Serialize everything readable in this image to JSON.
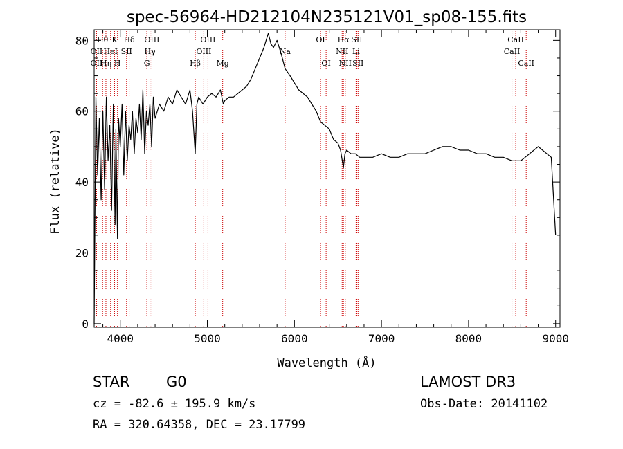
{
  "chart_data": {
    "type": "line",
    "title": "spec-56964-HD212104N235121V01_sp08-155.fits",
    "xlabel": "Wavelength (Å)",
    "ylabel": "Flux (relative)",
    "xlim": [
      3700,
      9050
    ],
    "ylim": [
      -1,
      83
    ],
    "x_ticks": [
      4000,
      5000,
      6000,
      7000,
      8000,
      9000
    ],
    "y_ticks": [
      0,
      20,
      40,
      60,
      80
    ],
    "grid": false,
    "series": [
      {
        "name": "flux",
        "x": [
          3700,
          3720,
          3740,
          3760,
          3780,
          3800,
          3820,
          3840,
          3860,
          3880,
          3900,
          3920,
          3940,
          3950,
          3968,
          3980,
          4000,
          4020,
          4040,
          4060,
          4080,
          4101,
          4120,
          4140,
          4160,
          4180,
          4200,
          4220,
          4240,
          4260,
          4280,
          4300,
          4320,
          4340,
          4360,
          4380,
          4400,
          4450,
          4500,
          4550,
          4600,
          4650,
          4700,
          4750,
          4800,
          4830,
          4861,
          4880,
          4900,
          4950,
          5000,
          5050,
          5100,
          5150,
          5183,
          5200,
          5250,
          5300,
          5350,
          5400,
          5450,
          5500,
          5550,
          5600,
          5650,
          5700,
          5730,
          5760,
          5800,
          5850,
          5893,
          5950,
          6000,
          6050,
          6100,
          6150,
          6200,
          6250,
          6300,
          6350,
          6400,
          6450,
          6500,
          6530,
          6550,
          6563,
          6580,
          6600,
          6650,
          6700,
          6750,
          6800,
          6900,
          7000,
          7100,
          7200,
          7300,
          7400,
          7500,
          7600,
          7700,
          7800,
          7900,
          8000,
          8100,
          8200,
          8300,
          8400,
          8500,
          8550,
          8600,
          8650,
          8700,
          8750,
          8800,
          8850,
          8900,
          8950,
          9000
        ],
        "values": [
          0,
          64,
          42,
          58,
          35,
          60,
          38,
          64,
          46,
          56,
          32,
          62,
          28,
          55,
          24,
          58,
          50,
          62,
          42,
          60,
          46,
          56,
          52,
          60,
          48,
          58,
          54,
          62,
          52,
          66,
          48,
          60,
          56,
          62,
          50,
          64,
          58,
          62,
          60,
          64,
          62,
          66,
          64,
          62,
          66,
          60,
          48,
          62,
          64,
          62,
          64,
          65,
          64,
          66,
          62,
          63,
          64,
          64,
          65,
          66,
          67,
          69,
          72,
          75,
          78,
          82,
          79,
          78,
          80,
          76,
          72,
          70,
          68,
          66,
          65,
          64,
          62,
          60,
          57,
          56,
          55,
          52,
          51,
          49,
          46,
          44,
          48,
          49,
          48,
          48,
          47,
          47,
          47,
          48,
          47,
          47,
          48,
          48,
          48,
          49,
          50,
          50,
          49,
          49,
          48,
          48,
          47,
          47,
          46,
          46,
          46,
          47,
          48,
          49,
          50,
          49,
          48,
          47,
          25
        ]
      }
    ],
    "lines": [
      {
        "label": "Hθ",
        "wavelength": 3797,
        "row": 0
      },
      {
        "label": "OII",
        "wavelength": 3727,
        "row": 1
      },
      {
        "label": "OII",
        "wavelength": 3727,
        "row": 2
      },
      {
        "label": "Hη",
        "wavelength": 3835,
        "row": 2
      },
      {
        "label": "K",
        "wavelength": 3934,
        "row": 0
      },
      {
        "label": "H",
        "wavelength": 3968,
        "row": 2
      },
      {
        "label": "HeI",
        "wavelength": 3889,
        "row": 1
      },
      {
        "label": "SII",
        "wavelength": 4072,
        "row": 1
      },
      {
        "label": "Hδ",
        "wavelength": 4102,
        "row": 0
      },
      {
        "label": "OIII",
        "wavelength": 4363,
        "row": 0
      },
      {
        "label": "Hγ",
        "wavelength": 4341,
        "row": 1
      },
      {
        "label": "G",
        "wavelength": 4305,
        "row": 2
      },
      {
        "label": "Hβ",
        "wavelength": 4861,
        "row": 2
      },
      {
        "label": "OIII",
        "wavelength": 5007,
        "row": 0
      },
      {
        "label": "OIII",
        "wavelength": 4959,
        "row": 1
      },
      {
        "label": "Mg",
        "wavelength": 5176,
        "row": 2
      },
      {
        "label": "Na",
        "wavelength": 5893,
        "row": 1
      },
      {
        "label": "OI",
        "wavelength": 6300,
        "row": 0
      },
      {
        "label": "OI",
        "wavelength": 6364,
        "row": 2
      },
      {
        "label": "Hα",
        "wavelength": 6563,
        "row": 0
      },
      {
        "label": "SII",
        "wavelength": 6717,
        "row": 0
      },
      {
        "label": "NII",
        "wavelength": 6548,
        "row": 1
      },
      {
        "label": "Li",
        "wavelength": 6708,
        "row": 1
      },
      {
        "label": "NII",
        "wavelength": 6584,
        "row": 2
      },
      {
        "label": "SII",
        "wavelength": 6731,
        "row": 2
      },
      {
        "label": "CaII",
        "wavelength": 8542,
        "row": 0
      },
      {
        "label": "CaII",
        "wavelength": 8498,
        "row": 1
      },
      {
        "label": "CaII",
        "wavelength": 8662,
        "row": 2
      }
    ],
    "line_color": "#cc0000"
  },
  "info": {
    "object_class": "STAR",
    "subclass": "G0",
    "survey": "LAMOST DR3",
    "redshift": "cz = -82.6 ± 195.9 km/s",
    "obs_date": "Obs-Date: 20141102",
    "coordinates": "RA = 320.64358, DEC =  23.17799"
  }
}
